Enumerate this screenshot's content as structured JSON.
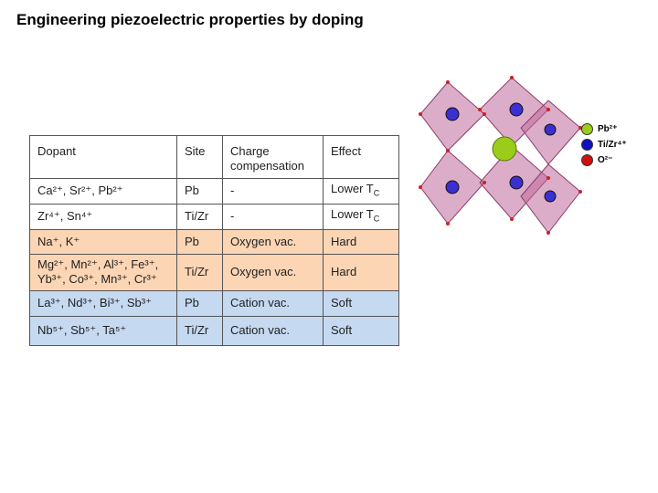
{
  "title": "Engineering piezoelectric properties by doping",
  "table": {
    "header": [
      "Dopant",
      "Site",
      "Charge compensation",
      "Effect"
    ],
    "rows": [
      [
        "Ca²⁺, Sr²⁺, Pb²⁺",
        "Pb",
        "-",
        {
          "text": "Lower T",
          "sub": "C"
        }
      ],
      [
        "Zr⁴⁺, Sn⁴⁺",
        "Ti/Zr",
        "-",
        {
          "text": "Lower T",
          "sub": "C"
        }
      ],
      [
        "Na⁺, K⁺",
        "Pb",
        "Oxygen vac.",
        "Hard"
      ],
      [
        "Mg²⁺, Mn²⁺, Al³⁺, Fe³⁺, Yb³⁺, Co³⁺, Mn³⁺, Cr³⁺",
        "Ti/Zr",
        "Oxygen vac.",
        "Hard"
      ],
      [
        "La³⁺, Nd³⁺, Bi³⁺, Sb³⁺",
        "Pb",
        "Cation vac.",
        "Soft"
      ],
      [
        "Nb⁵⁺, Sb⁵⁺, Ta⁵⁺",
        "Ti/Zr",
        "Cation vac.",
        "Soft"
      ]
    ]
  },
  "legend": [
    "Pb²⁺",
    "Ti/Zr⁴⁺",
    "O²⁻"
  ]
}
